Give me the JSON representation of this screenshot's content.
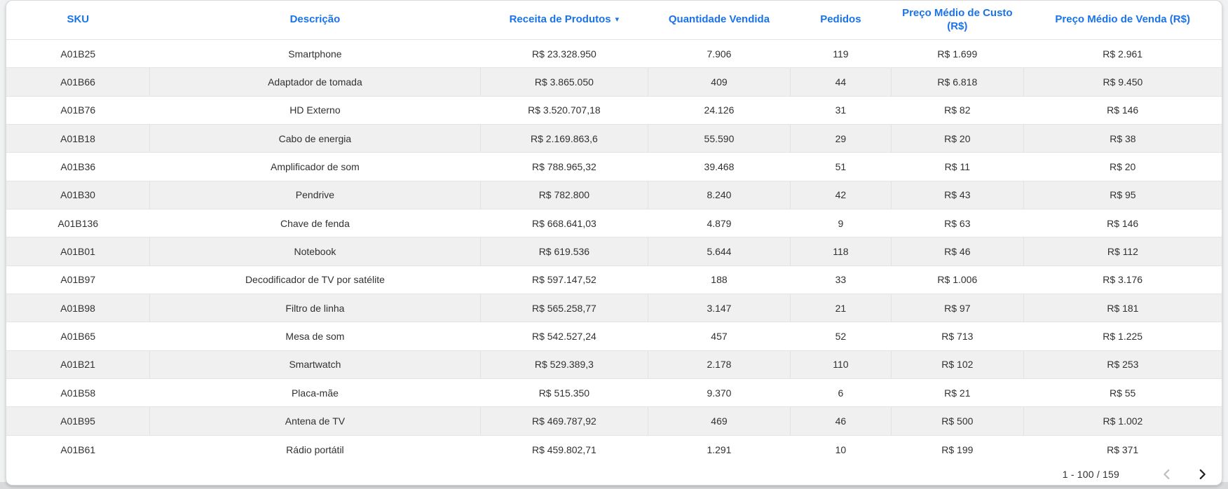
{
  "table": {
    "columns": [
      {
        "label": "SKU"
      },
      {
        "label": "Descrição"
      },
      {
        "label": "Receita de Produtos",
        "sorted": "desc"
      },
      {
        "label": "Quantidade Vendida"
      },
      {
        "label": "Pedidos"
      },
      {
        "label": "Preço Médio de Custo (R$)"
      },
      {
        "label": "Preço Médio de Venda (R$)"
      }
    ],
    "rows": [
      [
        "A01B25",
        "Smartphone",
        "R$ 23.328.950",
        "7.906",
        "119",
        "R$ 1.699",
        "R$ 2.961"
      ],
      [
        "A01B66",
        "Adaptador de tomada",
        "R$ 3.865.050",
        "409",
        "44",
        "R$ 6.818",
        "R$ 9.450"
      ],
      [
        "A01B76",
        "HD Externo",
        "R$ 3.520.707,18",
        "24.126",
        "31",
        "R$ 82",
        "R$ 146"
      ],
      [
        "A01B18",
        "Cabo de energia",
        "R$ 2.169.863,6",
        "55.590",
        "29",
        "R$ 20",
        "R$ 38"
      ],
      [
        "A01B36",
        "Amplificador de som",
        "R$ 788.965,32",
        "39.468",
        "51",
        "R$ 11",
        "R$ 20"
      ],
      [
        "A01B30",
        "Pendrive",
        "R$ 782.800",
        "8.240",
        "42",
        "R$ 43",
        "R$ 95"
      ],
      [
        "A01B136",
        "Chave de fenda",
        "R$ 668.641,03",
        "4.879",
        "9",
        "R$ 63",
        "R$ 146"
      ],
      [
        "A01B01",
        "Notebook",
        "R$ 619.536",
        "5.644",
        "118",
        "R$ 46",
        "R$ 112"
      ],
      [
        "A01B97",
        "Decodificador de TV por satélite",
        "R$ 597.147,52",
        "188",
        "33",
        "R$ 1.006",
        "R$ 3.176"
      ],
      [
        "A01B98",
        "Filtro de linha",
        "R$ 565.258,77",
        "3.147",
        "21",
        "R$ 97",
        "R$ 181"
      ],
      [
        "A01B65",
        "Mesa de som",
        "R$ 542.527,24",
        "457",
        "52",
        "R$ 713",
        "R$ 1.225"
      ],
      [
        "A01B21",
        "Smartwatch",
        "R$ 529.389,3",
        "2.178",
        "110",
        "R$ 102",
        "R$ 253"
      ],
      [
        "A01B58",
        "Placa-mãe",
        "R$ 515.350",
        "9.370",
        "6",
        "R$ 21",
        "R$ 55"
      ],
      [
        "A01B95",
        "Antena de TV",
        "R$ 469.787,92",
        "469",
        "46",
        "R$ 500",
        "R$ 1.002"
      ],
      [
        "A01B61",
        "Rádio portátil",
        "R$ 459.802,71",
        "1.291",
        "10",
        "R$ 199",
        "R$ 371"
      ]
    ]
  },
  "pagination": {
    "range_label": "1 - 100 / 159",
    "prev_enabled": false,
    "next_enabled": true
  },
  "icons": {
    "sort_desc": "▾",
    "chevron_left": "‹",
    "chevron_right": "›"
  },
  "colors": {
    "header_text": "#1a73e8",
    "row_stripe": "#f0f0f0",
    "cell_text": "#313131",
    "chevron_disabled": "#bfbfbf",
    "chevron_enabled": "#1f1f1f"
  }
}
